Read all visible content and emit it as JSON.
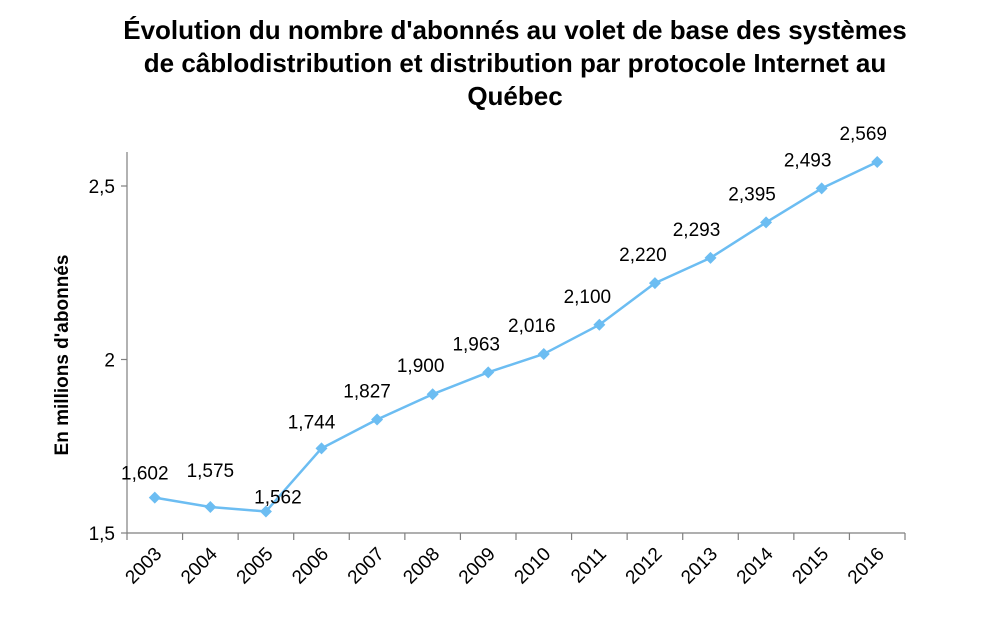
{
  "chart_data": {
    "type": "line",
    "title_lines": [
      "Évolution du nombre d'abonnés au volet de base des systèmes",
      "de câblodistribution et distribution par protocole Internet au",
      "Québec"
    ],
    "xlabel": "",
    "ylabel": "En millions d'abonnés",
    "ylim": [
      1.5,
      2.6
    ],
    "yticks": [
      1.5,
      2,
      2.5
    ],
    "ytick_labels": [
      "1,5",
      "2",
      "2,5"
    ],
    "categories": [
      "2003",
      "2004",
      "2005",
      "2006",
      "2007",
      "2008",
      "2009",
      "2010",
      "2011",
      "2012",
      "2013",
      "2014",
      "2015",
      "2016"
    ],
    "series": [
      {
        "values": [
          1.602,
          1.575,
          1.562,
          1.744,
          1.827,
          1.9,
          1.963,
          2.016,
          2.1,
          2.22,
          2.293,
          2.395,
          2.493,
          2.569
        ],
        "labels": [
          "1,602",
          "1,575",
          "1,562",
          "1,744",
          "1,827",
          "1,900",
          "1,963",
          "2,016",
          "2,100",
          "2,220",
          "2,293",
          "2,395",
          "2,493",
          "2,569"
        ],
        "color": "#6cbdf2",
        "marker": "diamond"
      }
    ],
    "grid": false,
    "legend": "none"
  }
}
